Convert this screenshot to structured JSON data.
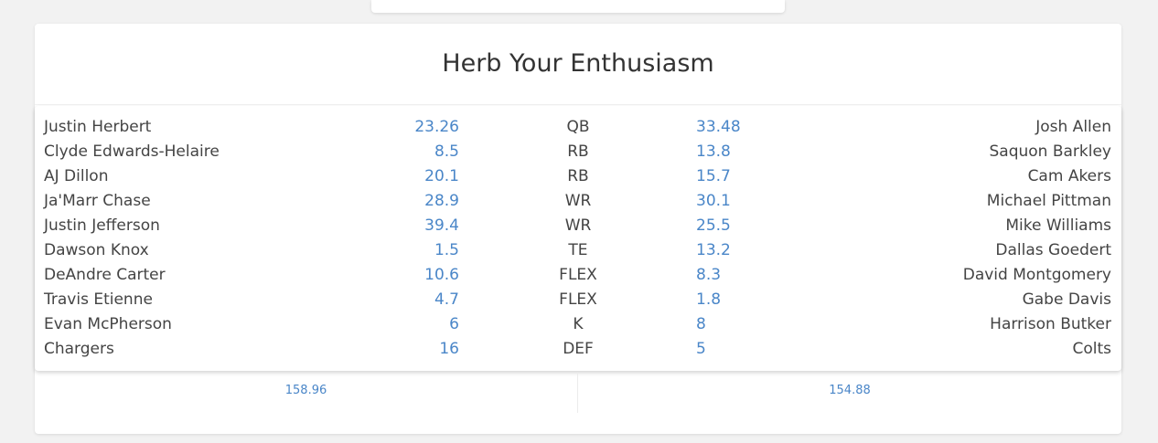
{
  "matchup": {
    "title": "Herb Your Enthusiasm",
    "rows": [
      {
        "home_player": "Justin Herbert",
        "home_score": "23.26",
        "position": "QB",
        "away_score": "33.48",
        "away_player": "Josh Allen"
      },
      {
        "home_player": "Clyde Edwards-Helaire",
        "home_score": "8.5",
        "position": "RB",
        "away_score": "13.8",
        "away_player": "Saquon Barkley"
      },
      {
        "home_player": "AJ Dillon",
        "home_score": "20.1",
        "position": "RB",
        "away_score": "15.7",
        "away_player": "Cam Akers"
      },
      {
        "home_player": "Ja'Marr Chase",
        "home_score": "28.9",
        "position": "WR",
        "away_score": "30.1",
        "away_player": "Michael Pittman"
      },
      {
        "home_player": "Justin Jefferson",
        "home_score": "39.4",
        "position": "WR",
        "away_score": "25.5",
        "away_player": "Mike Williams"
      },
      {
        "home_player": "Dawson Knox",
        "home_score": "1.5",
        "position": "TE",
        "away_score": "13.2",
        "away_player": "Dallas Goedert"
      },
      {
        "home_player": "DeAndre Carter",
        "home_score": "10.6",
        "position": "FLEX",
        "away_score": "8.3",
        "away_player": "David Montgomery"
      },
      {
        "home_player": "Travis Etienne",
        "home_score": "4.7",
        "position": "FLEX",
        "away_score": "1.8",
        "away_player": "Gabe Davis"
      },
      {
        "home_player": "Evan McPherson",
        "home_score": "6",
        "position": "K",
        "away_score": "8",
        "away_player": "Harrison Butker"
      },
      {
        "home_player": "Chargers",
        "home_score": "16",
        "position": "DEF",
        "away_score": "5",
        "away_player": "Colts"
      }
    ],
    "home_total": "158.96",
    "away_total": "154.88"
  },
  "colors": {
    "score": "#4a86c8",
    "text": "#333333",
    "background": "#f2f2f2"
  }
}
